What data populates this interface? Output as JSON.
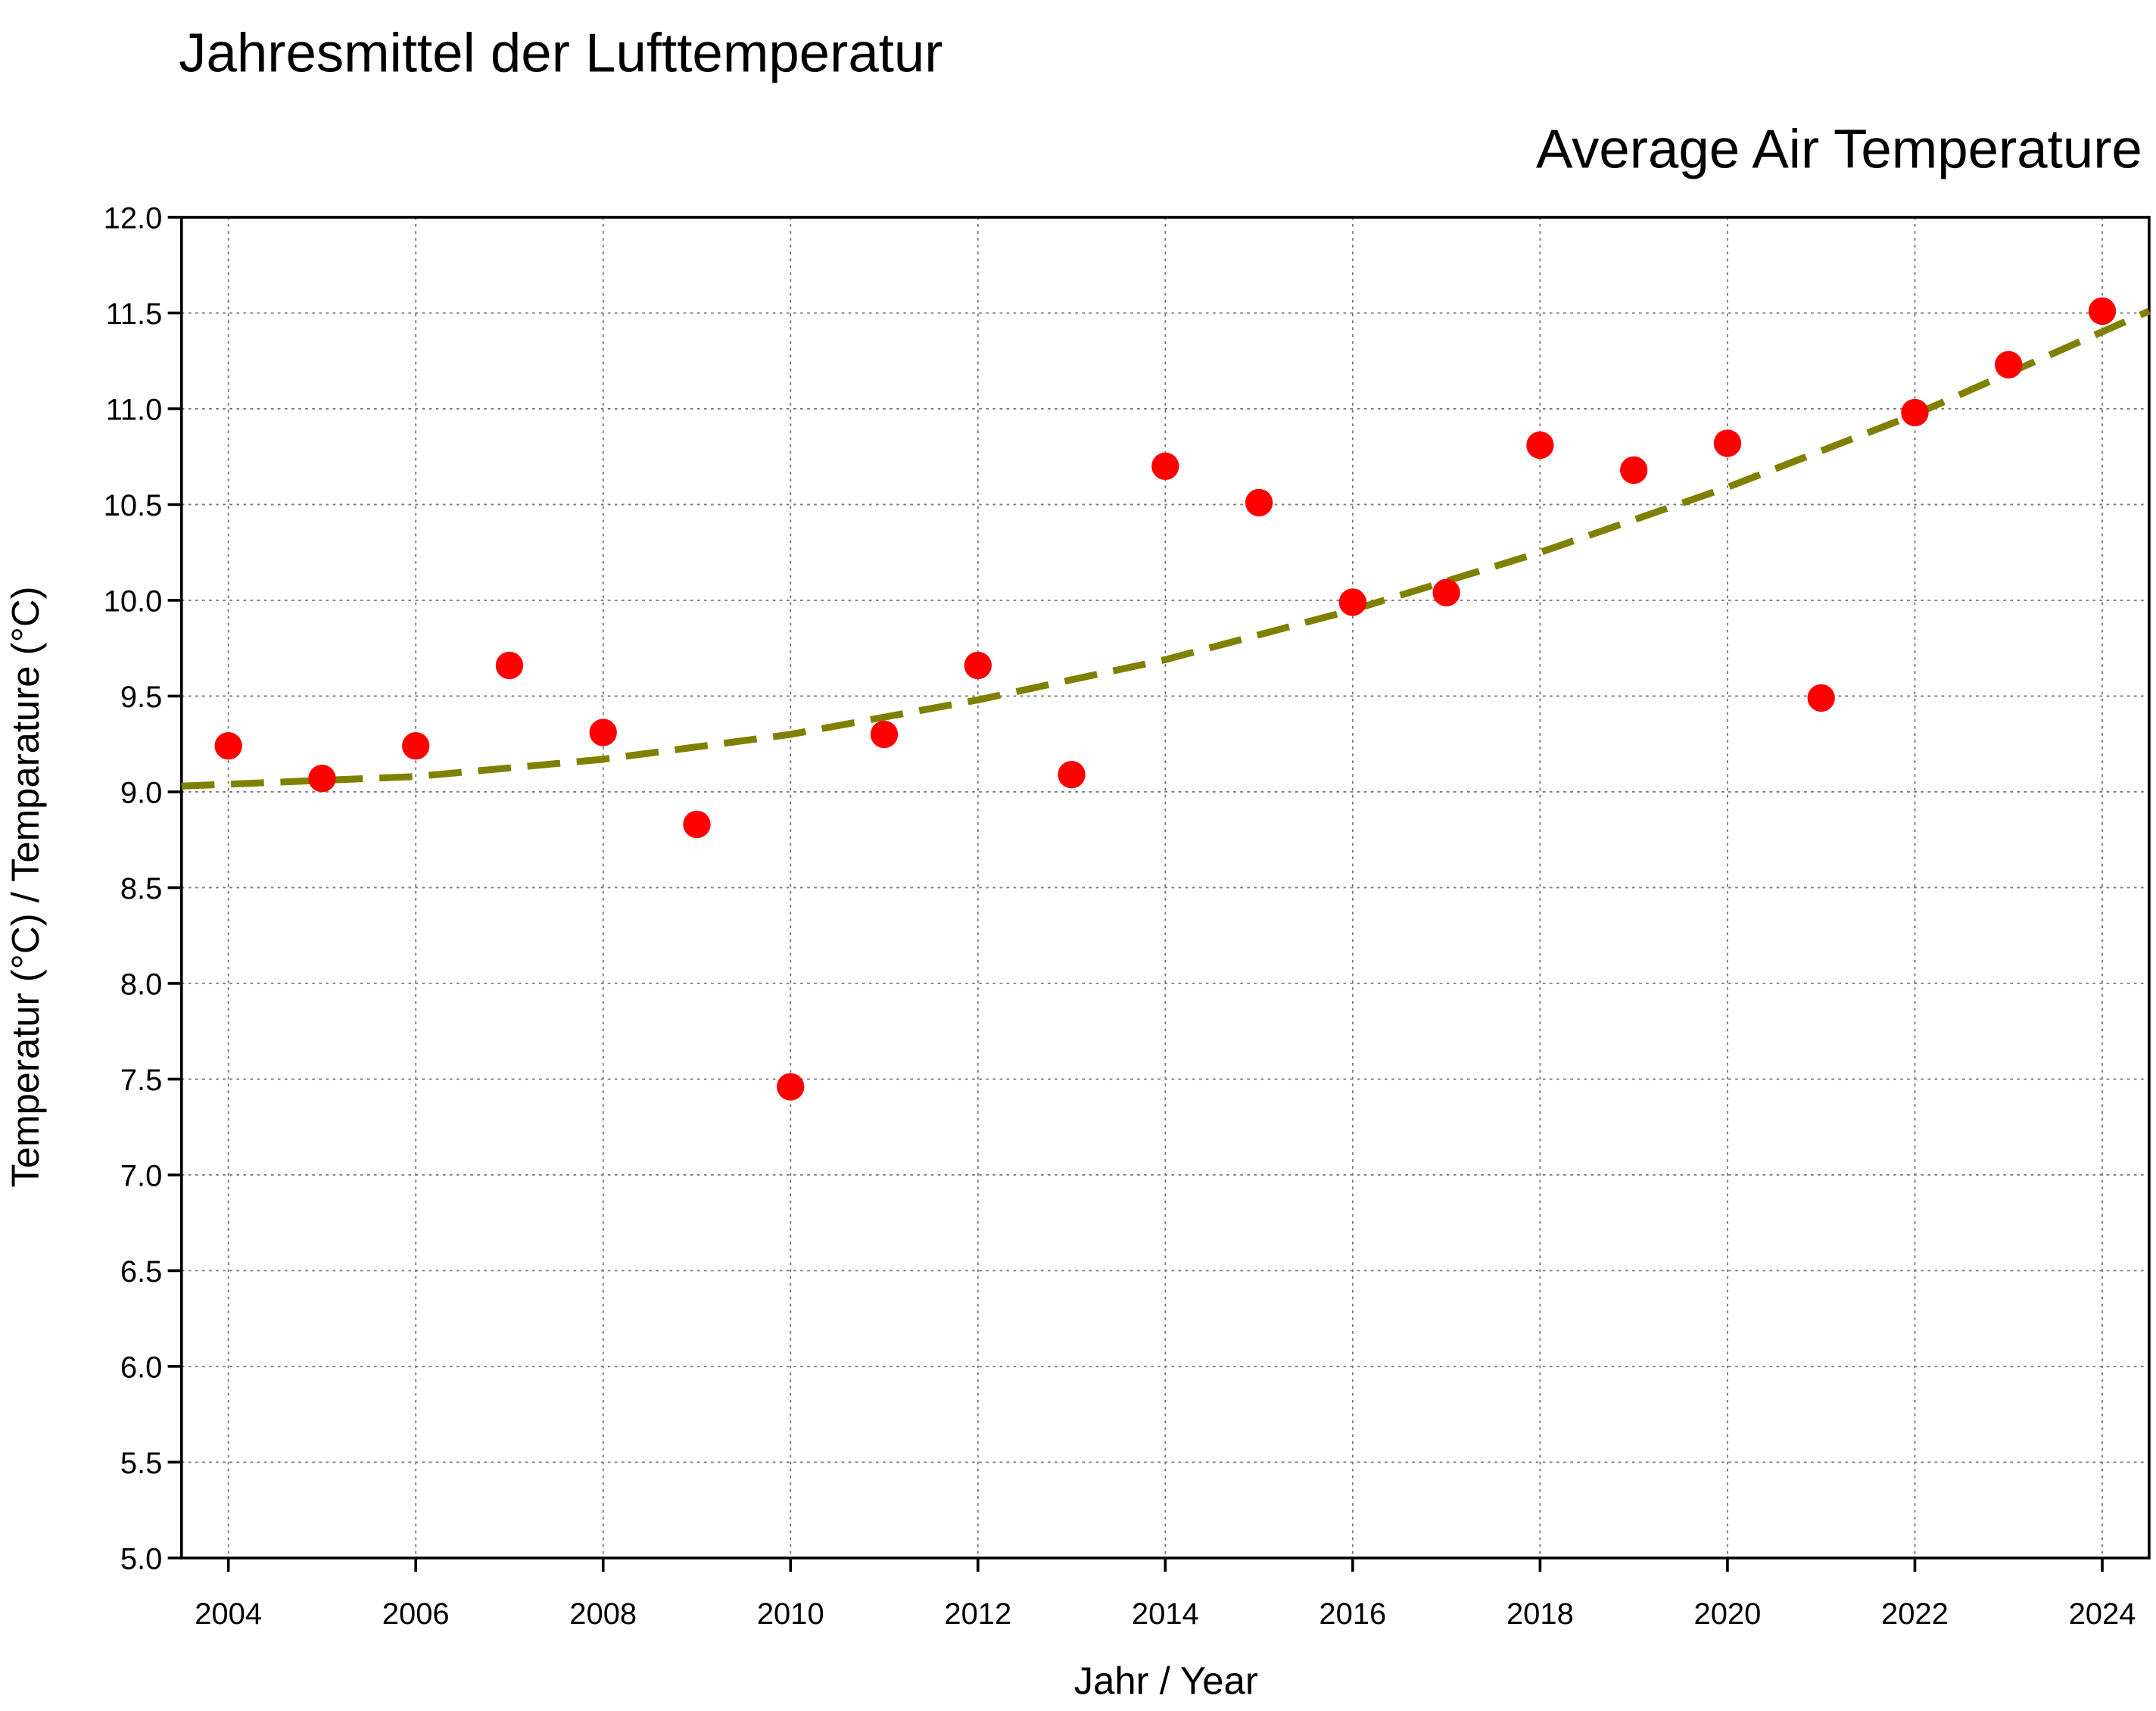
{
  "chart_data": {
    "type": "scatter",
    "title": "Jahresmittel der Lufttemperatur",
    "subtitle": "Average Air Temperature",
    "x_label": "Jahr / Year",
    "y_label": "Temperatur (°C) / Temparature (°C)",
    "grid": true,
    "xlim": [
      2003.5,
      2024.5
    ],
    "ylim": [
      5,
      12
    ],
    "xticks": [
      2004,
      2006,
      2008,
      2010,
      2012,
      2014,
      2016,
      2018,
      2020,
      2022,
      2024
    ],
    "yticks": [
      {
        "value": 5,
        "label": "5.0"
      },
      5.5,
      {
        "value": 6,
        "label": "6.0"
      },
      6.5,
      {
        "value": 7,
        "label": "7.0"
      },
      7.5,
      {
        "value": 8,
        "label": "8.0"
      },
      8.5,
      {
        "value": 9,
        "label": "9.0"
      },
      9.5,
      {
        "value": 10,
        "label": "10.0"
      },
      10.5,
      {
        "value": 11,
        "label": "11.0"
      },
      11.5,
      {
        "value": 12,
        "label": "12.0"
      }
    ],
    "series": [
      {
        "type": "scatter",
        "color": "#ff0000",
        "x": [
          2004,
          2005,
          2006,
          2007,
          2008,
          2009,
          2010,
          2011,
          2012,
          2013,
          2014,
          2015,
          2016,
          2017,
          2018,
          2019,
          2020,
          2021,
          2022,
          2023,
          2024
        ],
        "values": [
          9.24,
          9.07,
          9.24,
          9.66,
          9.31,
          8.83,
          7.46,
          9.3,
          9.66,
          9.09,
          10.7,
          10.51,
          9.99,
          10.04,
          10.81,
          10.68,
          10.82,
          9.49,
          10.98,
          11.23,
          11.51
        ]
      },
      {
        "type": "line",
        "color": "#808000",
        "x": [
          2003.5,
          2006,
          2008,
          2010,
          2012,
          2014,
          2016,
          2018,
          2020,
          2022,
          2024.5
        ],
        "values": [
          9.03,
          9.08,
          9.17,
          9.3,
          9.48,
          9.69,
          9.95,
          10.25,
          10.59,
          10.97,
          11.51
        ]
      }
    ]
  }
}
